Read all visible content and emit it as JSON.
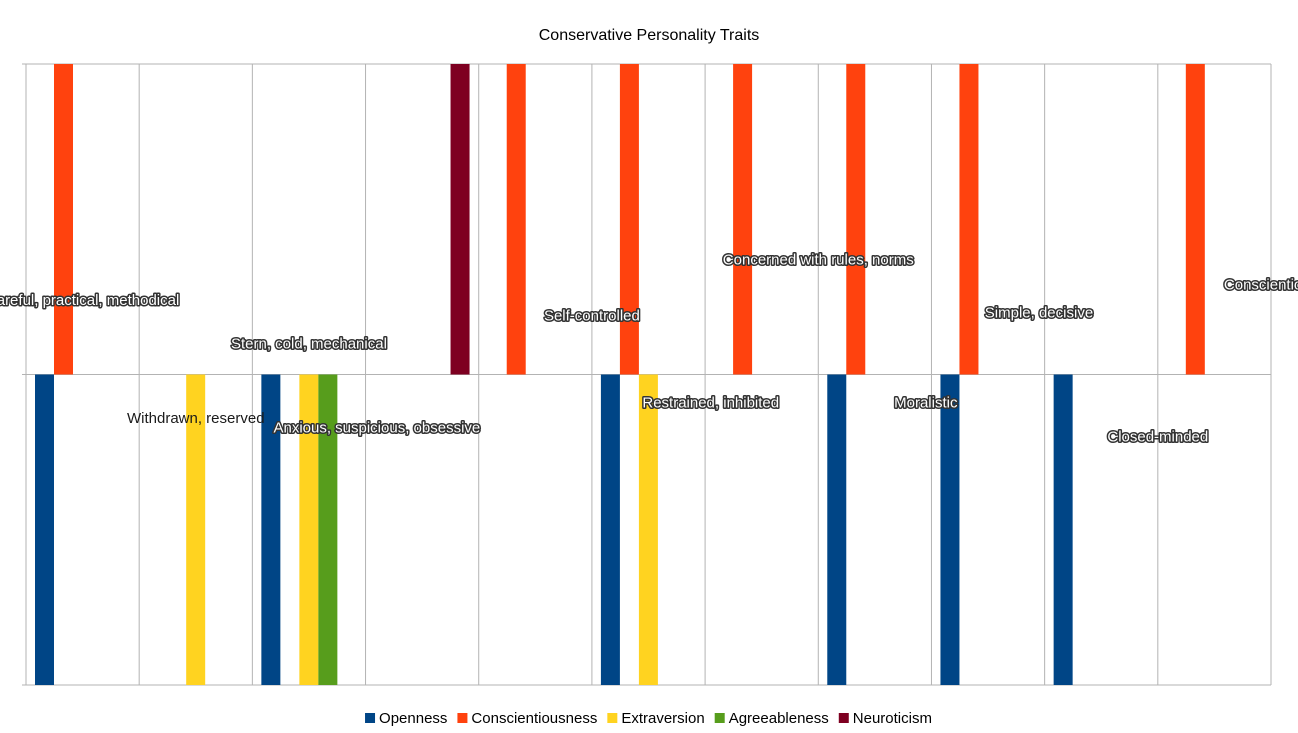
{
  "chart_data": {
    "type": "bar",
    "title": "Conservative Personality Traits",
    "xlabel": "",
    "ylabel": "",
    "ylim": [
      -1,
      1
    ],
    "grid": true,
    "legend_position": "bottom",
    "category_count": 11,
    "series": [
      {
        "name": "Openness",
        "color": "#004586",
        "values": [
          -1,
          null,
          -1,
          null,
          null,
          -1,
          null,
          -1,
          -1,
          -1,
          null
        ]
      },
      {
        "name": "Conscientiousness",
        "color": "#ff420e",
        "values": [
          1,
          null,
          null,
          null,
          1,
          1,
          1,
          1,
          1,
          null,
          1
        ]
      },
      {
        "name": "Extraversion",
        "color": "#ffd320",
        "values": [
          null,
          -1,
          -1,
          null,
          null,
          -1,
          null,
          null,
          null,
          null,
          null
        ]
      },
      {
        "name": "Agreeableness",
        "color": "#579d1c",
        "values": [
          null,
          null,
          -1,
          null,
          null,
          null,
          null,
          null,
          null,
          null,
          null
        ]
      },
      {
        "name": "Neuroticism",
        "color": "#7e0021",
        "values": [
          null,
          null,
          null,
          1,
          null,
          null,
          null,
          null,
          null,
          null,
          null
        ]
      }
    ],
    "annotations": [
      {
        "text": "Careful, practical, methodical",
        "category": 0,
        "y": 0.24,
        "halo": true
      },
      {
        "text": "Withdrawn, reserved",
        "category": 1,
        "y": -0.14,
        "halo": false
      },
      {
        "text": "Stern, cold, mechanical",
        "category": 2,
        "y": 0.1,
        "halo": true
      },
      {
        "text": "Anxious, suspicious, obsessive",
        "category": 2.6,
        "y": -0.17,
        "halo": true
      },
      {
        "text": "Self-controlled",
        "category": 4.5,
        "y": 0.19,
        "halo": true
      },
      {
        "text": "Restrained, inhibited",
        "category": 5.55,
        "y": -0.09,
        "halo": true
      },
      {
        "text": "Concerned with rules, norms",
        "category": 6.5,
        "y": 0.37,
        "halo": true
      },
      {
        "text": "Moralistic",
        "category": 7.45,
        "y": -0.09,
        "halo": true
      },
      {
        "text": "Simple, decisive",
        "category": 8.45,
        "y": 0.2,
        "halo": true
      },
      {
        "text": "Closed-minded",
        "category": 9.5,
        "y": -0.2,
        "halo": true
      },
      {
        "text": "Conscientious",
        "category": 10.5,
        "y": 0.29,
        "halo": true
      }
    ]
  }
}
